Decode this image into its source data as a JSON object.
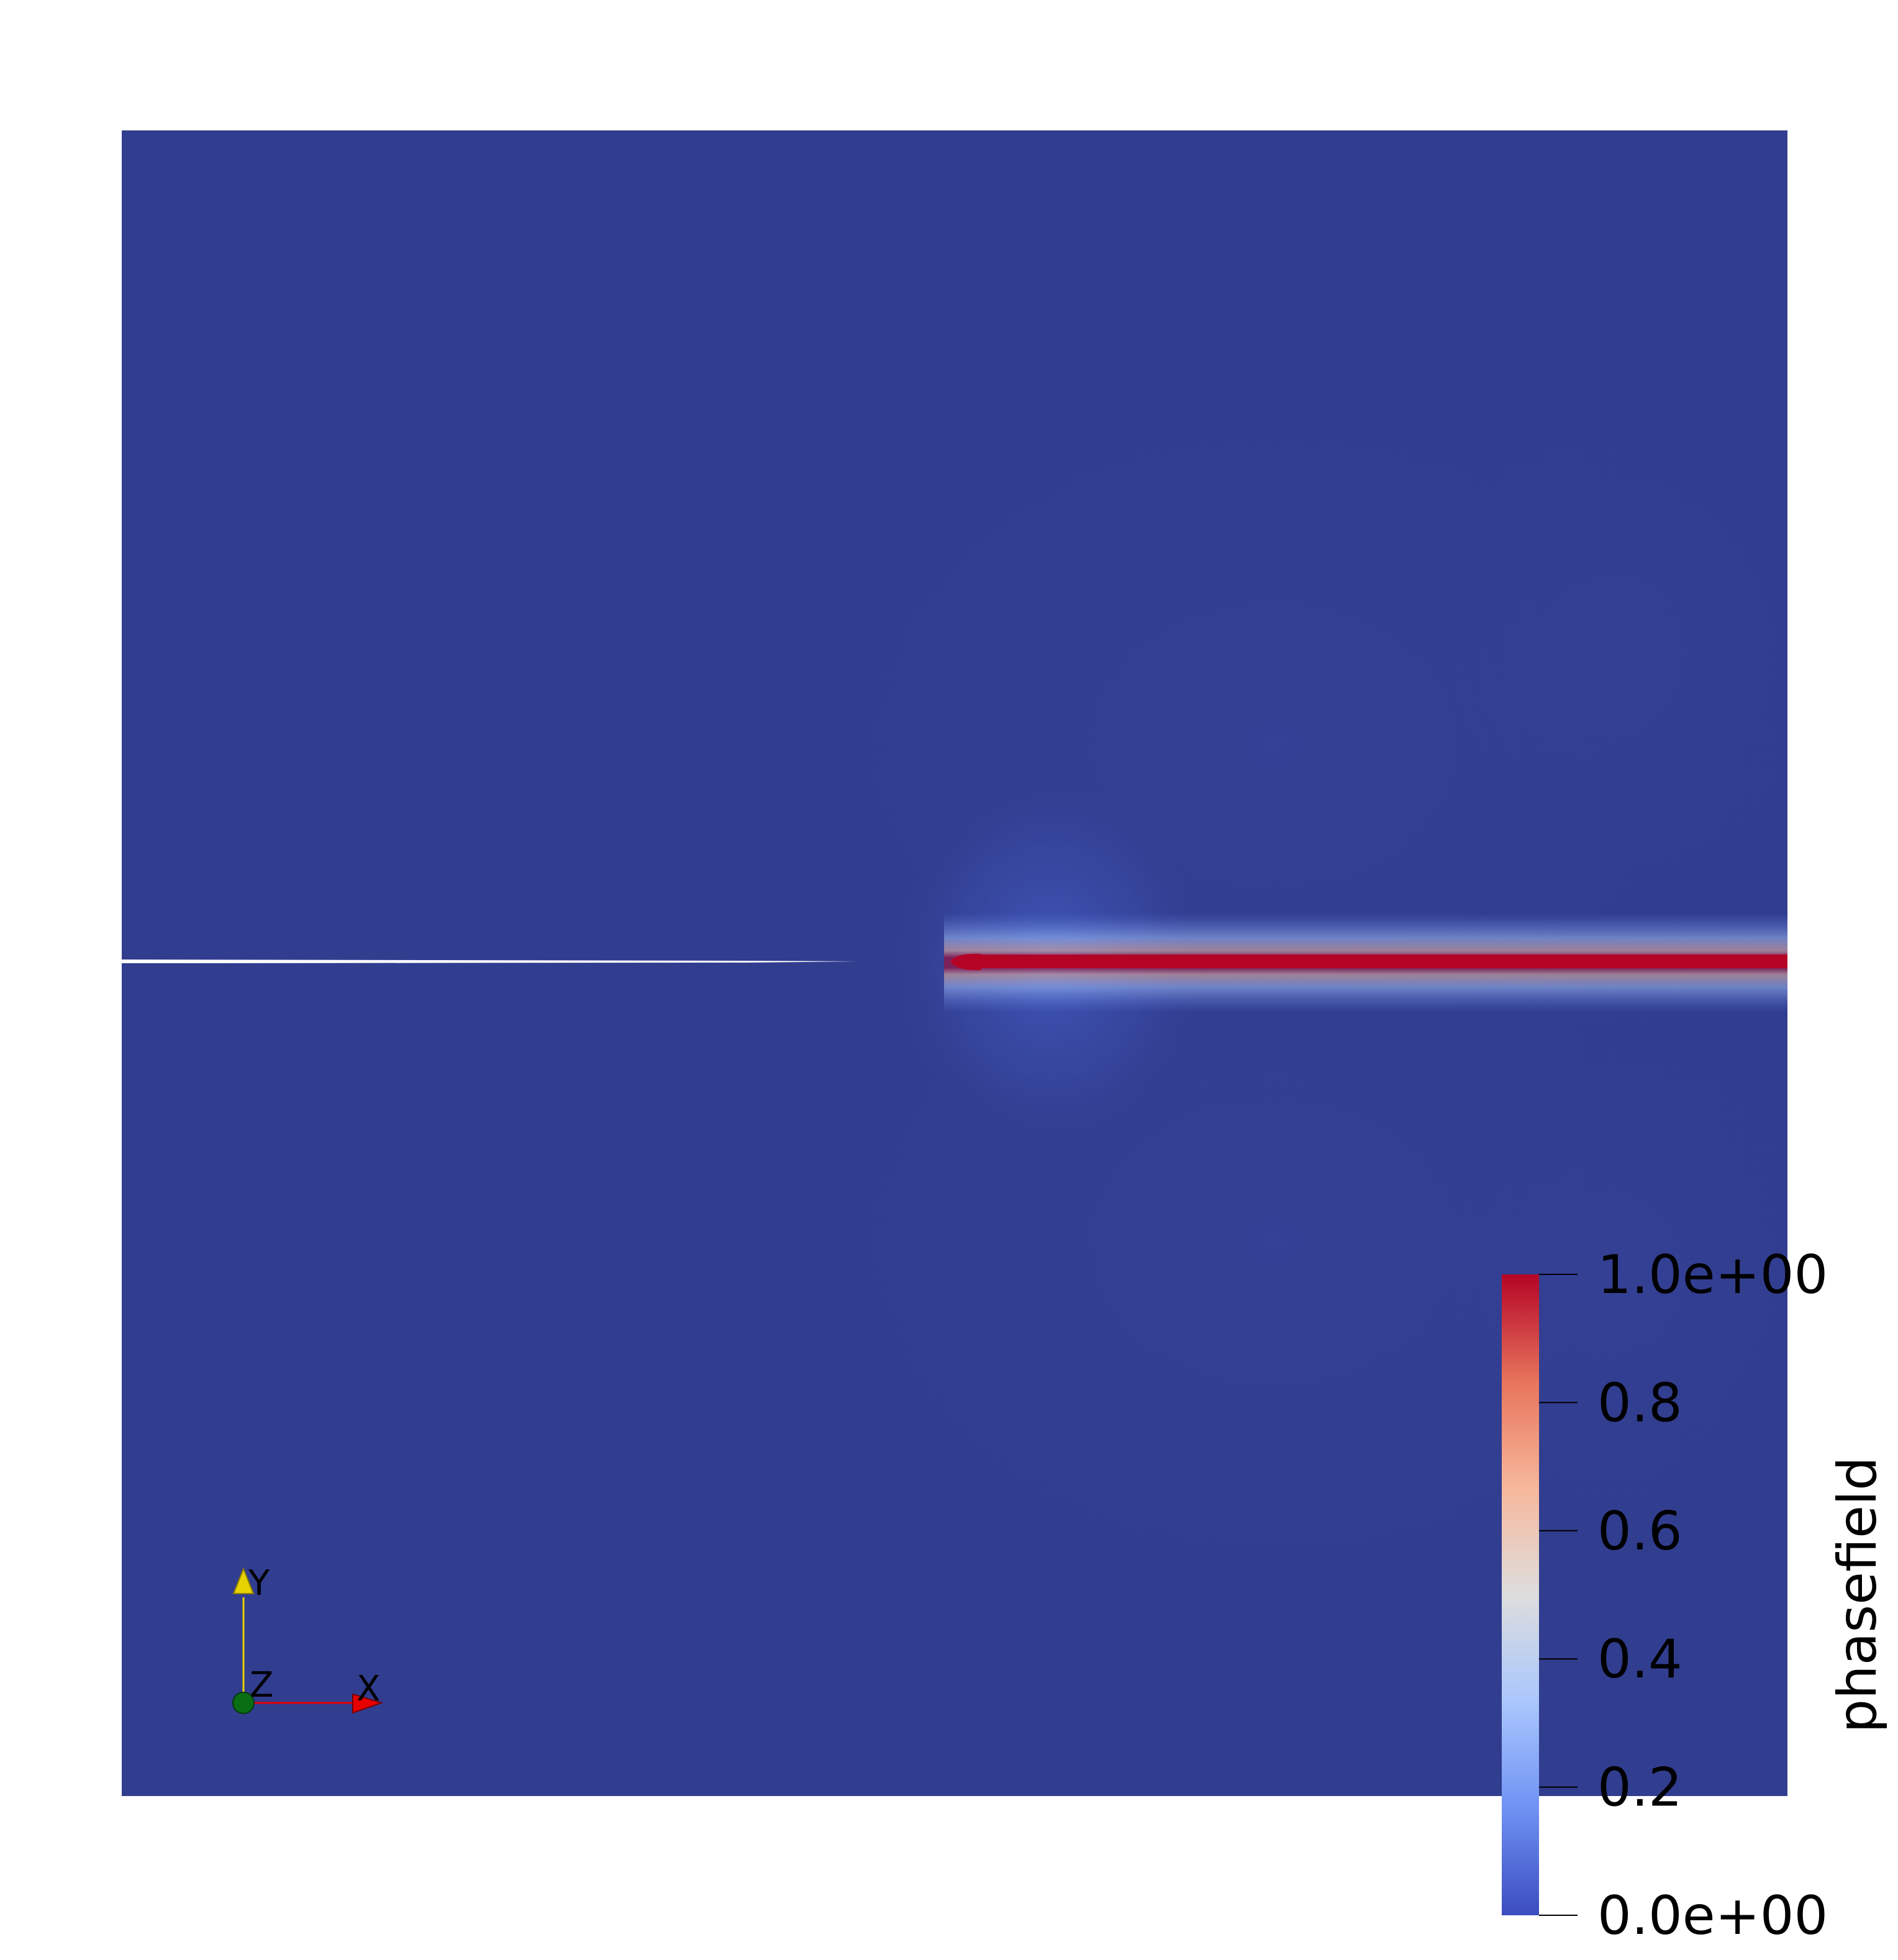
{
  "scalar_bar": {
    "title": "phasefield",
    "range": [
      0,
      1
    ],
    "ticks": [
      {
        "value": 1.0,
        "label": "1.0e+00"
      },
      {
        "value": 0.8,
        "label": "0.8"
      },
      {
        "value": 0.6,
        "label": "0.6"
      },
      {
        "value": 0.4,
        "label": "0.4"
      },
      {
        "value": 0.2,
        "label": "0.2"
      },
      {
        "value": 0.0,
        "label": "0.0e+00"
      }
    ],
    "colormap": [
      "#3b4cc0",
      "#6f92f3",
      "#aac7fd",
      "#dddddd",
      "#f7b89c",
      "#e7745b",
      "#b40426"
    ]
  },
  "orientation_axes": {
    "y_label": "Y",
    "z_label": "Z",
    "x_label": "X",
    "y_color": "#e5d200",
    "z_color": "#0a6e14",
    "x_color": "#e60000"
  },
  "render": {
    "background_field_color": "#313d8f",
    "crack_color": "#b40426"
  }
}
